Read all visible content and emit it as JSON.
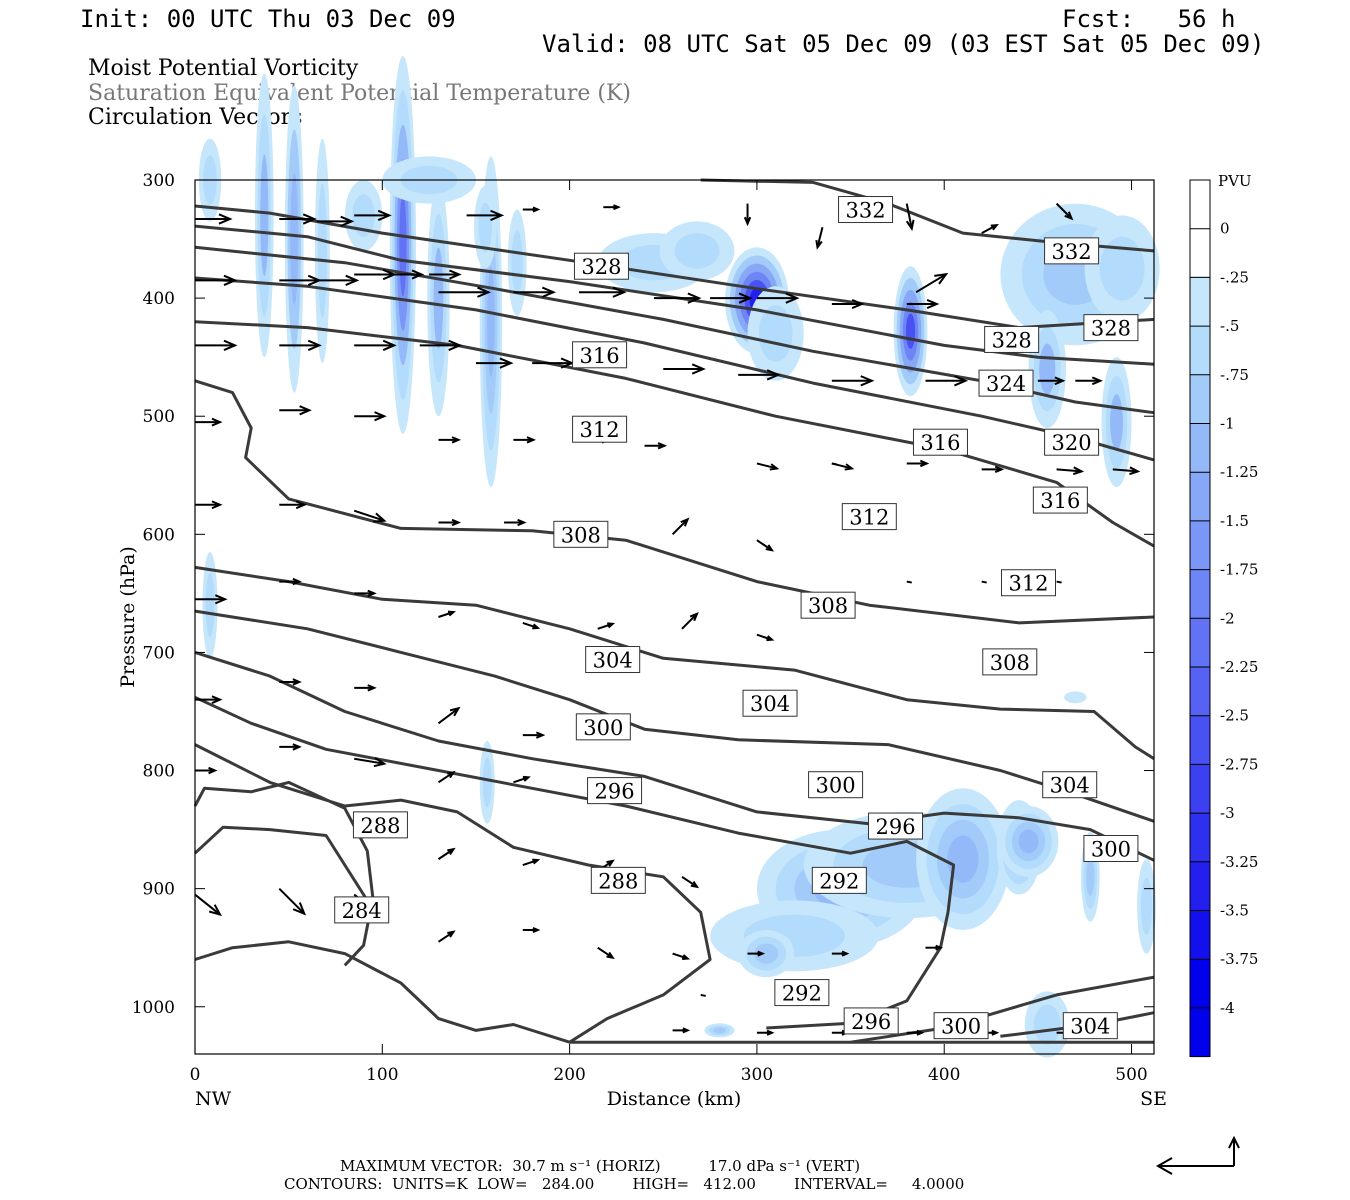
{
  "header": {
    "init": "Init: 00 UTC Thu 03 Dec 09",
    "fcst": "Fcst:   56 h",
    "valid": "Valid: 08 UTC Sat 05 Dec 09 (03 EST Sat 05 Dec 09)",
    "field1": "Moist Potential Vorticity",
    "field2": "Saturation Equivalent Potential Temperature (K)",
    "field3": "Circulation Vectors"
  },
  "footer": {
    "max_vector": "MAXIMUM VECTOR:  30.7 m s⁻¹ (HORIZ)          17.0 dPa s⁻¹ (VERT)",
    "contours": "CONTOURS:  UNITS=K  LOW=   284.00        HIGH=   412.00        INTERVAL=     4.0000"
  },
  "colors": {
    "contour": "#3a3a3a",
    "pv_shades": [
      "#c6e6fb",
      "#b3dbfb",
      "#a3cbfa",
      "#93b9f8",
      "#87a8f7",
      "#7a96f6",
      "#6d85f5",
      "#6173f4",
      "#5562f2",
      "#4851f1",
      "#3c40f0",
      "#2f2fef",
      "#2320ee",
      "#1410ed",
      "#0000ec"
    ]
  },
  "chart_data": {
    "type": "contour",
    "xlabel": "Distance (km)",
    "ylabel": "Pressure (hPa)",
    "xlim": [
      0,
      512
    ],
    "ylim": [
      1040,
      300
    ],
    "x_ticks": [
      0,
      100,
      200,
      300,
      400,
      500
    ],
    "y_ticks": [
      300,
      400,
      500,
      600,
      700,
      800,
      900,
      1000
    ],
    "x_end_labels": {
      "left": "NW",
      "right": "SE"
    },
    "colorbar": {
      "units": "PVU",
      "levels": [
        "0",
        "-.25",
        "-.5",
        "-.75",
        "-1",
        "-1.25",
        "-1.5",
        "-1.75",
        "-2",
        "-2.25",
        "-2.5",
        "-2.75",
        "-3",
        "-3.25",
        "-3.5",
        "-3.75",
        "-4"
      ]
    },
    "contour_labels": [
      {
        "text": "332",
        "x": 358,
        "p": 325
      },
      {
        "text": "332",
        "x": 468,
        "p": 360
      },
      {
        "text": "328",
        "x": 217,
        "p": 373
      },
      {
        "text": "328",
        "x": 436,
        "p": 435
      },
      {
        "text": "328",
        "x": 489,
        "p": 425
      },
      {
        "text": "324",
        "x": 433,
        "p": 472
      },
      {
        "text": "320",
        "x": 468,
        "p": 522
      },
      {
        "text": "316",
        "x": 216,
        "p": 448
      },
      {
        "text": "316",
        "x": 398,
        "p": 522
      },
      {
        "text": "316",
        "x": 462,
        "p": 571
      },
      {
        "text": "312",
        "x": 216,
        "p": 511
      },
      {
        "text": "312",
        "x": 360,
        "p": 585
      },
      {
        "text": "312",
        "x": 445,
        "p": 641
      },
      {
        "text": "308",
        "x": 206,
        "p": 600
      },
      {
        "text": "308",
        "x": 338,
        "p": 660
      },
      {
        "text": "308",
        "x": 435,
        "p": 708
      },
      {
        "text": "304",
        "x": 223,
        "p": 706
      },
      {
        "text": "304",
        "x": 307,
        "p": 743
      },
      {
        "text": "304",
        "x": 467,
        "p": 812
      },
      {
        "text": "300",
        "x": 218,
        "p": 763
      },
      {
        "text": "300",
        "x": 342,
        "p": 812
      },
      {
        "text": "300",
        "x": 489,
        "p": 866
      },
      {
        "text": "300",
        "x": 409,
        "p": 1016
      },
      {
        "text": "296",
        "x": 224,
        "p": 817
      },
      {
        "text": "296",
        "x": 374,
        "p": 847
      },
      {
        "text": "296",
        "x": 361,
        "p": 1012
      },
      {
        "text": "292",
        "x": 344,
        "p": 893
      },
      {
        "text": "292",
        "x": 324,
        "p": 988
      },
      {
        "text": "288",
        "x": 99,
        "p": 846
      },
      {
        "text": "288",
        "x": 226,
        "p": 893
      },
      {
        "text": "284",
        "x": 89,
        "p": 918
      },
      {
        "text": "304",
        "x": 478,
        "p": 1016
      }
    ]
  }
}
